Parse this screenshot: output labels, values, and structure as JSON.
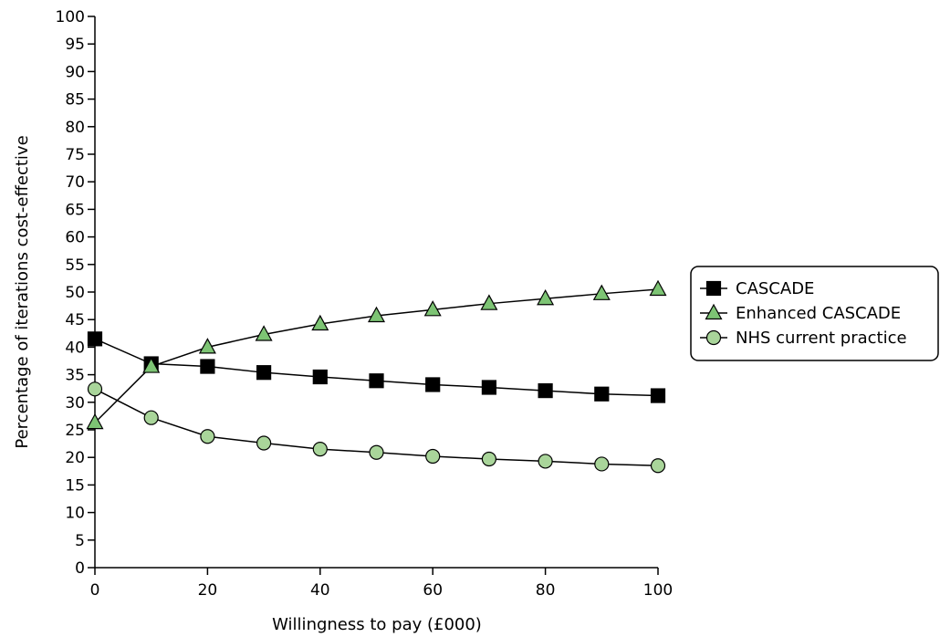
{
  "chart_data": {
    "type": "line",
    "xlabel": "Willingness to pay (£000)",
    "ylabel": "Percentage of iterations cost-effective",
    "xlim": [
      0,
      100
    ],
    "ylim": [
      0,
      100
    ],
    "x_ticks": [
      "0",
      "20",
      "40",
      "60",
      "80",
      "100"
    ],
    "y_ticks": [
      "0",
      "5",
      "10",
      "15",
      "20",
      "25",
      "30",
      "35",
      "40",
      "45",
      "50",
      "55",
      "60",
      "65",
      "70",
      "75",
      "80",
      "85",
      "90",
      "95",
      "100"
    ],
    "grid": false,
    "legend_position": "right",
    "x": [
      0,
      10,
      20,
      30,
      40,
      50,
      60,
      70,
      80,
      90,
      100
    ],
    "series": [
      {
        "name": "CASCADE",
        "marker": "square",
        "color": "#000000",
        "values": [
          41.5,
          37,
          36.5,
          35.4,
          34.6,
          33.9,
          33.2,
          32.7,
          32.1,
          31.5,
          31.2
        ]
      },
      {
        "name": "Enhanced CASCADE",
        "marker": "triangle",
        "color": "#7dc474",
        "values": [
          26.3,
          36.5,
          40,
          42.3,
          44.2,
          45.7,
          46.8,
          47.9,
          48.8,
          49.7,
          50.5
        ]
      },
      {
        "name": "NHS current practice",
        "marker": "circle",
        "color": "#a9d59a",
        "values": [
          32.4,
          27.2,
          23.8,
          22.6,
          21.5,
          20.9,
          20.2,
          19.7,
          19.3,
          18.8,
          18.5
        ]
      }
    ]
  }
}
